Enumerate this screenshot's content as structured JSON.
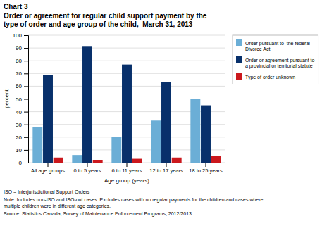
{
  "chart_data": {
    "type": "bar",
    "title": "Chart 3",
    "subtitle": "Order or agreement for regular child support payment by the\ntype of order and age group of the child,  March 31, 2013",
    "x_label": "Age group (years)",
    "y_label": "percent",
    "categories": [
      "All age groups",
      "0 to 5 years",
      "6 to 11 years",
      "12 to 17 years",
      "18 to 25 years"
    ],
    "series": [
      {
        "name": "Order pursuant to  the federal\nDivorce Act",
        "color": "#6baed6",
        "values": [
          28,
          6,
          20,
          33,
          50
        ]
      },
      {
        "name": "Order or agreement pursuant to\na provincial or territorial statute",
        "color": "#08306b",
        "values": [
          69,
          91,
          77,
          63,
          45
        ]
      },
      {
        "name": "Type of order unknown",
        "color": "#cb181d",
        "values": [
          4,
          2,
          3,
          4,
          5
        ]
      }
    ],
    "ylim": [
      0,
      100
    ],
    "yticks": [
      0,
      10,
      20,
      30,
      40,
      50,
      60,
      70,
      80,
      90,
      100
    ],
    "grid": true,
    "legend": "right",
    "annotations": [
      "ISO = Interjurisdictional Support Orders",
      "Note: Includes non-ISO and ISO-out cases. Excludes cases with no regular payments for the children and cases where\nmultiple children were in different age categories.",
      "Source: Statistics Canada, Survey of Maintenance Enforcement Programs, 2012/2013."
    ]
  }
}
